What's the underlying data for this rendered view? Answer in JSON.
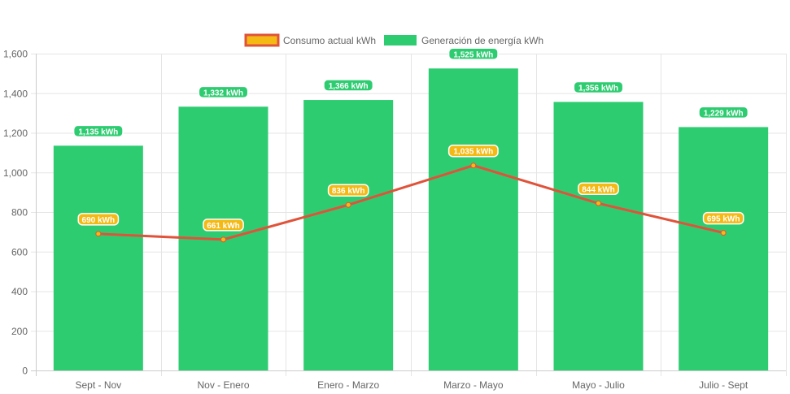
{
  "chart_data": {
    "type": "bar",
    "categories": [
      "Sept - Nov",
      "Nov - Enero",
      "Enero - Marzo",
      "Marzo - Mayo",
      "Mayo - Julio",
      "Julio - Sept"
    ],
    "series": [
      {
        "name": "Consumo actual kWh",
        "type": "line",
        "values": [
          690,
          661,
          836,
          1035,
          844,
          695
        ],
        "color": "#e0533a",
        "point_color": "#f5b914",
        "labels": [
          "690 kWh",
          "661 kWh",
          "836 kWh",
          "1,035 kWh",
          "844 kWh",
          "695 kWh"
        ]
      },
      {
        "name": "Generación de energía kWh",
        "type": "bar",
        "values": [
          1135,
          1332,
          1366,
          1525,
          1356,
          1229
        ],
        "color": "#2ecc71",
        "labels": [
          "1,135 kWh",
          "1,332 kWh",
          "1,366 kWh",
          "1,525 kWh",
          "1,356 kWh",
          "1,229 kWh"
        ]
      }
    ],
    "ylim": [
      0,
      1600
    ],
    "yticks": [
      "0",
      "200",
      "400",
      "600",
      "800",
      "1,000",
      "1,200",
      "1,400",
      "1,600"
    ],
    "ytick_values": [
      0,
      200,
      400,
      600,
      800,
      1000,
      1200,
      1400,
      1600
    ],
    "grid": true,
    "legend_position": "top"
  }
}
